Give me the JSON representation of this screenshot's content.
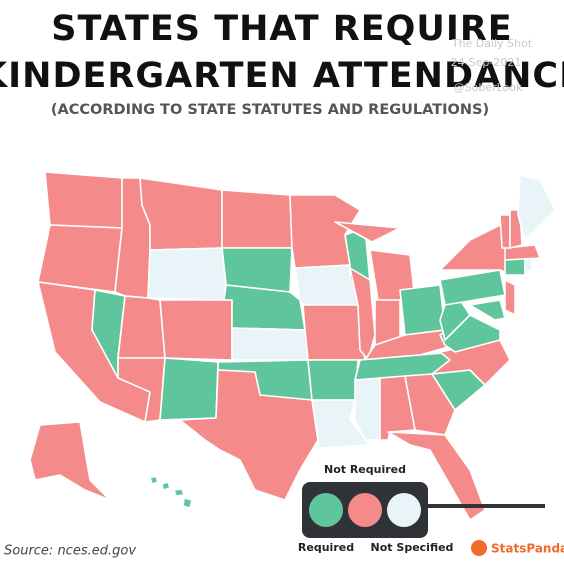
{
  "header": {
    "title_lines": [
      "STATES THAT REQUIRE",
      "KINDERGARTEN ATTENDANCE"
    ],
    "subtitle": "(ACCORDING TO STATE STATUTES AND REGULATIONS)"
  },
  "watermark": [
    "The Daily Shot",
    "24-Sep-2021",
    "@SoberLook"
  ],
  "legend": {
    "items": [
      {
        "label": "Required",
        "color": "#5fc59d"
      },
      {
        "label": "Not Required",
        "color": "#f48a89"
      },
      {
        "label": "Not Specified",
        "color": "#e9f4f8"
      }
    ]
  },
  "map": {
    "regions": [
      1,
      1,
      1,
      0,
      1,
      1,
      1,
      0,
      2,
      1,
      1,
      0,
      2,
      1,
      0,
      0,
      1,
      1,
      2,
      1,
      0,
      2,
      0,
      1,
      1,
      1,
      0,
      1,
      0,
      2,
      1,
      1,
      1,
      0,
      1,
      0,
      0,
      0,
      1,
      0,
      1,
      0,
      2,
      1,
      1,
      1,
      2,
      1,
      0
    ]
  },
  "source": "Source: nces.ed.gov",
  "brand": "StatsPanda"
}
